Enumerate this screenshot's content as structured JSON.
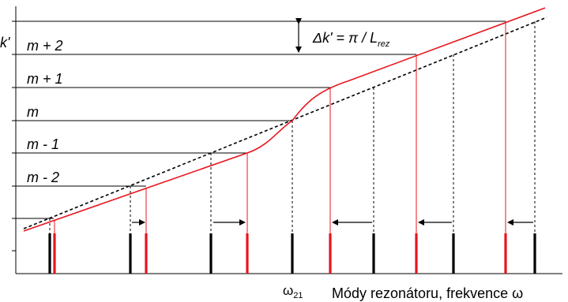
{
  "diagram": {
    "y_axis_label": "k'",
    "mode_levels": [
      "m + 2",
      "m + 1",
      "m",
      "m - 1",
      "m - 2"
    ],
    "spacing_annotation": {
      "prefix": "Δk' = π / L",
      "subscript": "rez"
    },
    "omega_label": {
      "symbol": "ω",
      "subscript": "21"
    },
    "x_axis_label": "Módy rezonátoru, frekvence ω",
    "colors": {
      "lines": "#000000",
      "dispersion_curve": "#e8141e",
      "modes_black": "#000000",
      "modes_red": "#e8141e"
    }
  }
}
